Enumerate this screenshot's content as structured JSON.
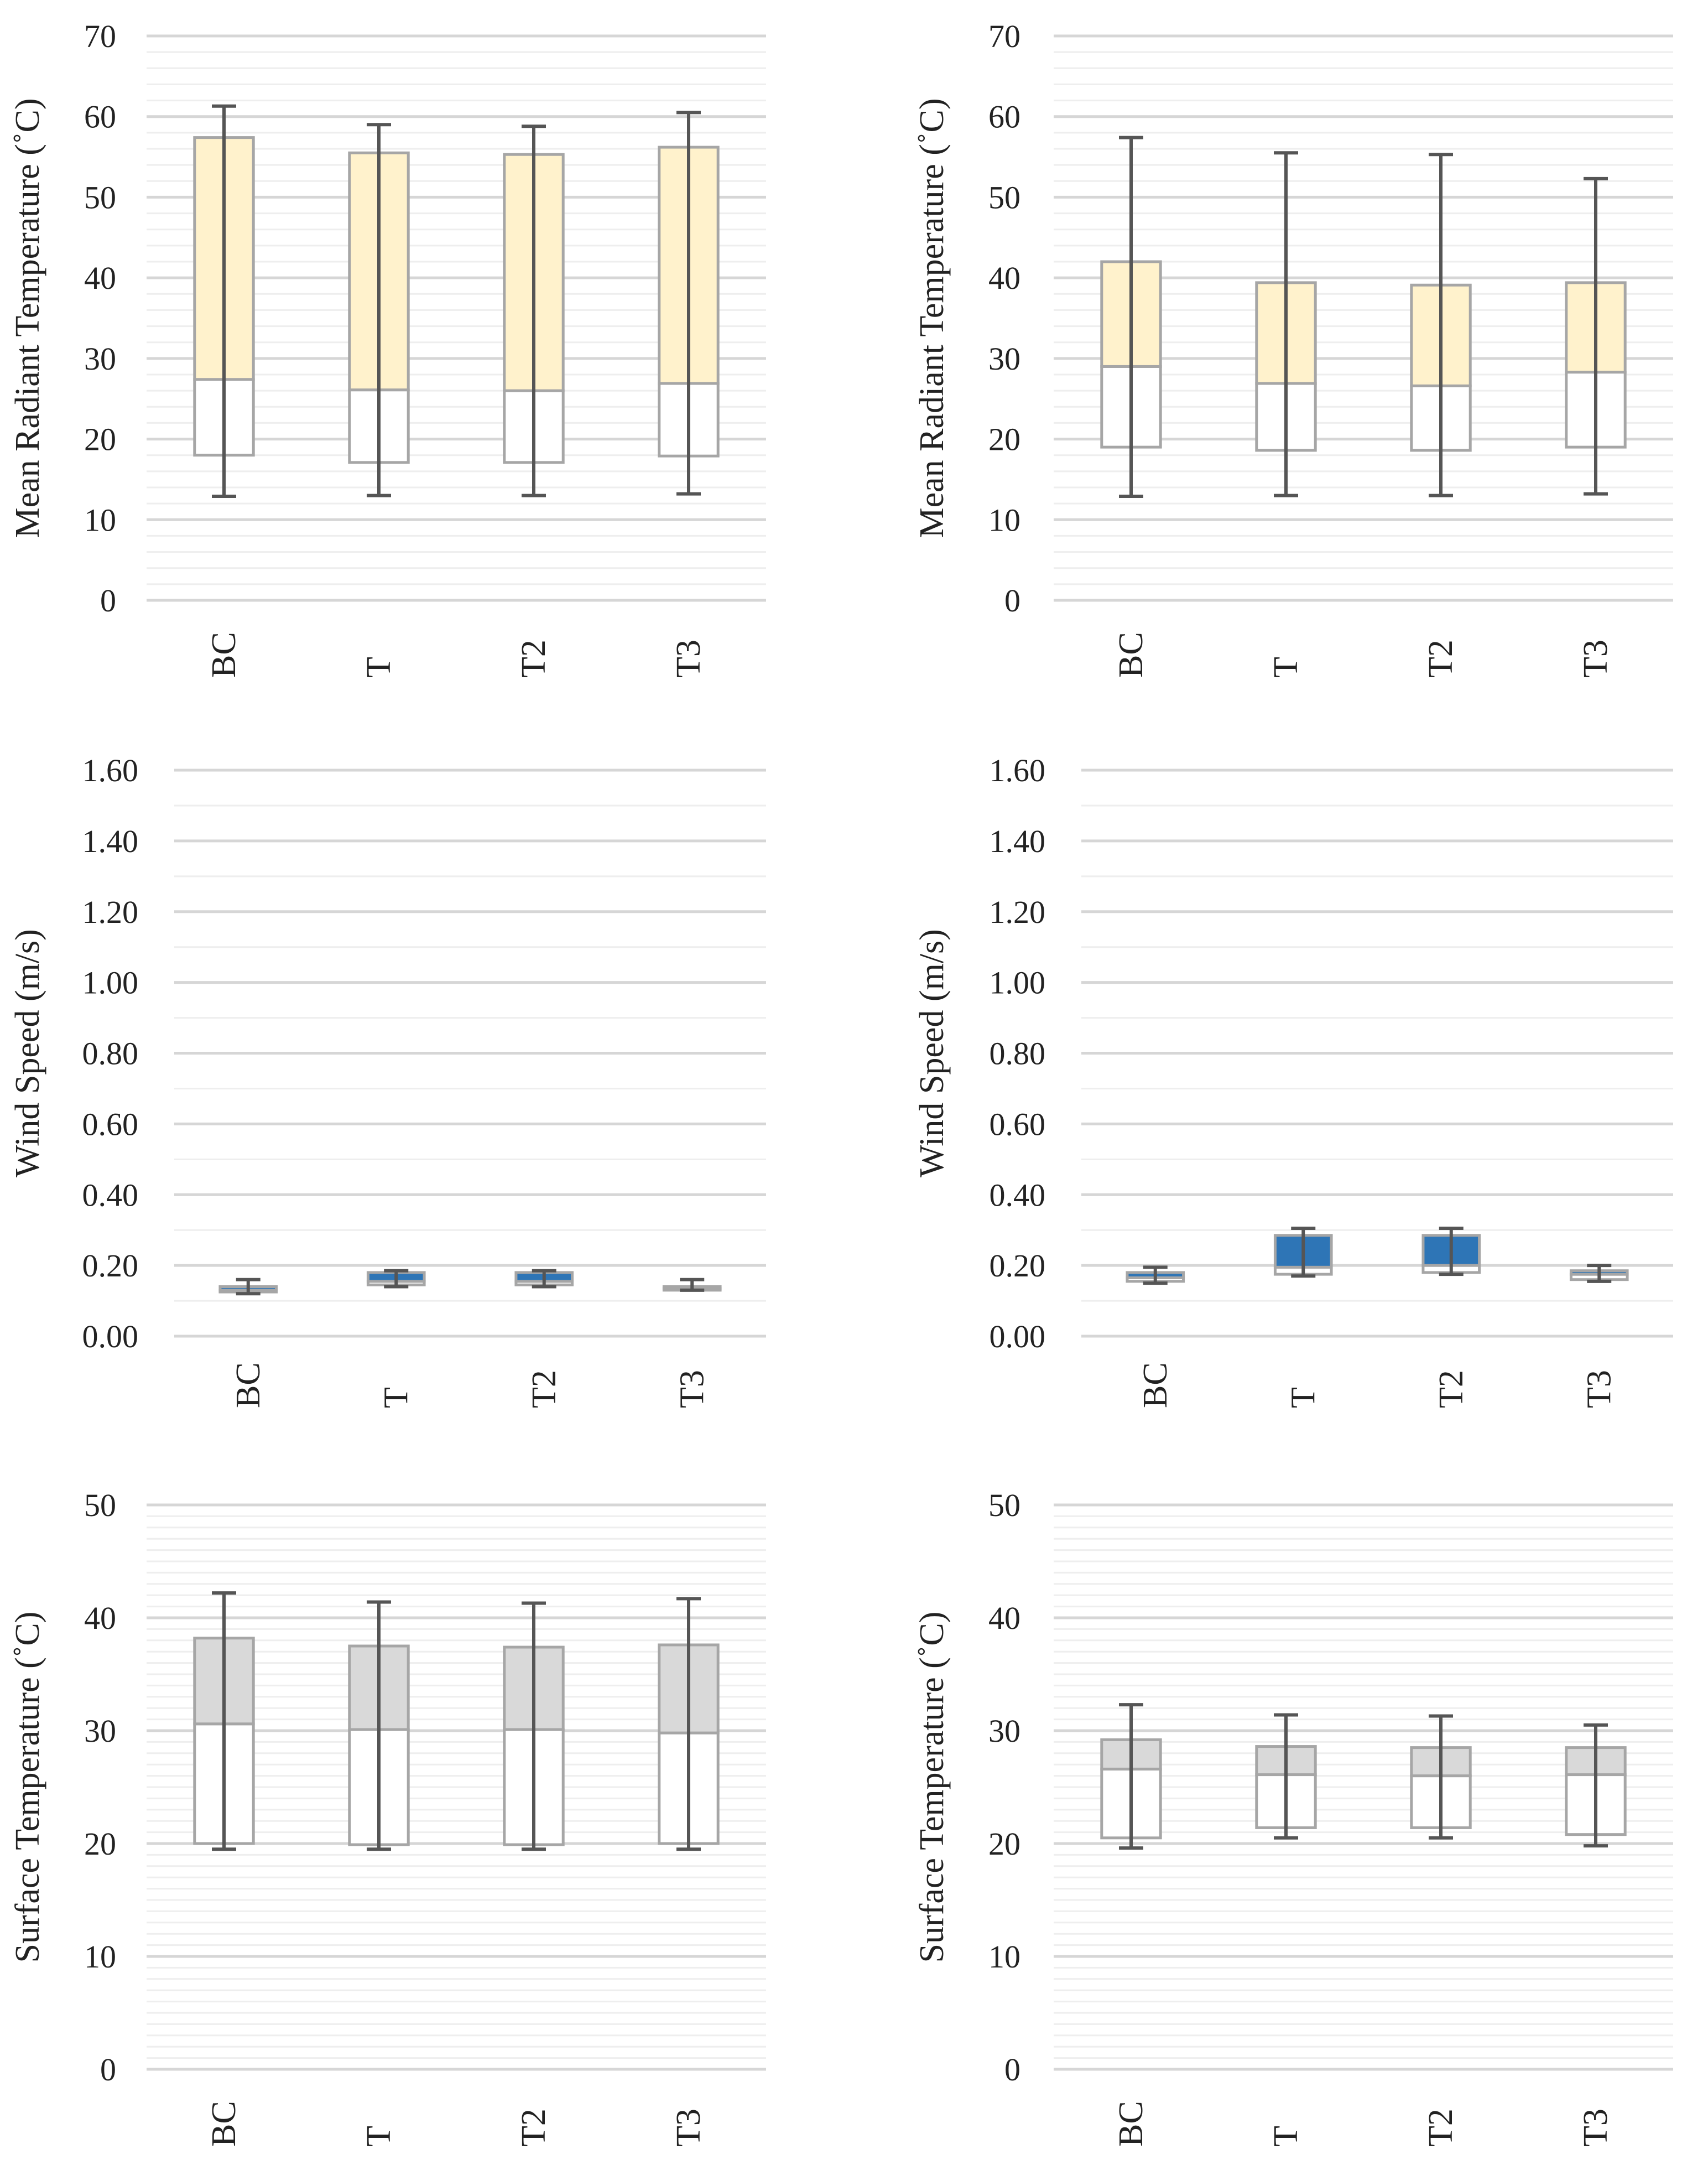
{
  "colors": {
    "major_grid": "#d6d6d6",
    "minor_grid": "#eeeeee",
    "box_edge": "#a6a6a6",
    "whisker": "#555555",
    "yellow": "#fff2cc",
    "blue": "#2e75b6",
    "grey": "#d9d9d9"
  },
  "chart_data": [
    {
      "id": "mrt-left",
      "type": "box",
      "ylabel": "Mean Radiant Temperature (˚C)",
      "ylim": [
        0,
        70
      ],
      "major_step": 10,
      "minor_step": 2,
      "tick_decimals": 0,
      "fill_color": "#fff2cc",
      "categories": [
        "BC",
        "T",
        "T2",
        "T3"
      ],
      "min": [
        12.9,
        13.0,
        13.0,
        13.2
      ],
      "q1": [
        18.0,
        17.1,
        17.1,
        17.9
      ],
      "median": [
        27.4,
        26.1,
        26.0,
        26.9
      ],
      "q3": [
        57.4,
        55.5,
        55.3,
        56.2
      ],
      "max": [
        61.3,
        59.0,
        58.8,
        60.5
      ]
    },
    {
      "id": "mrt-right",
      "type": "box",
      "ylabel": "Mean Radiant Temperature (˚C)",
      "ylim": [
        0,
        70
      ],
      "major_step": 10,
      "minor_step": 2,
      "tick_decimals": 0,
      "fill_color": "#fff2cc",
      "categories": [
        "BC",
        "T",
        "T2",
        "T3"
      ],
      "min": [
        12.9,
        13.0,
        13.0,
        13.2
      ],
      "q1": [
        19.0,
        18.6,
        18.6,
        19.0
      ],
      "median": [
        29.0,
        26.9,
        26.6,
        28.3
      ],
      "q3": [
        42.0,
        39.4,
        39.1,
        39.4
      ],
      "max": [
        57.4,
        55.5,
        55.3,
        52.3
      ]
    },
    {
      "id": "wind-left",
      "type": "box",
      "ylabel": "Wind Speed (m/s)",
      "ylim": [
        0,
        1.6
      ],
      "major_step": 0.2,
      "minor_step": 0.1,
      "tick_decimals": 2,
      "fill_color": "#2e75b6",
      "categories": [
        "BC",
        "T",
        "T2",
        "T3"
      ],
      "min": [
        0.12,
        0.14,
        0.14,
        0.13
      ],
      "q1": [
        0.125,
        0.145,
        0.145,
        0.13
      ],
      "median": [
        0.13,
        0.155,
        0.155,
        0.135
      ],
      "q3": [
        0.14,
        0.18,
        0.18,
        0.14
      ],
      "max": [
        0.16,
        0.185,
        0.185,
        0.16
      ]
    },
    {
      "id": "wind-right",
      "type": "box",
      "ylabel": "Wind Speed (m/s)",
      "ylim": [
        0,
        1.6
      ],
      "major_step": 0.2,
      "minor_step": 0.1,
      "tick_decimals": 2,
      "fill_color": "#2e75b6",
      "categories": [
        "BC",
        "T",
        "T2",
        "T3"
      ],
      "min": [
        0.15,
        0.17,
        0.175,
        0.155
      ],
      "q1": [
        0.155,
        0.175,
        0.18,
        0.16
      ],
      "median": [
        0.165,
        0.195,
        0.2,
        0.175
      ],
      "q3": [
        0.18,
        0.285,
        0.285,
        0.185
      ],
      "max": [
        0.195,
        0.305,
        0.305,
        0.2
      ]
    },
    {
      "id": "surf-left",
      "type": "box",
      "ylabel": "Surface Temperature (˚C)",
      "ylim": [
        0,
        50
      ],
      "major_step": 10,
      "minor_step": 1,
      "tick_decimals": 0,
      "fill_color": "#d9d9d9",
      "categories": [
        "BC",
        "T",
        "T2",
        "T3"
      ],
      "min": [
        19.5,
        19.5,
        19.5,
        19.5
      ],
      "q1": [
        20.0,
        19.9,
        19.9,
        20.0
      ],
      "median": [
        30.6,
        30.1,
        30.1,
        29.8
      ],
      "q3": [
        38.2,
        37.5,
        37.4,
        37.6
      ],
      "max": [
        42.2,
        41.4,
        41.3,
        41.7
      ]
    },
    {
      "id": "surf-right",
      "type": "box",
      "ylabel": "Surface Temperature (˚C)",
      "ylim": [
        0,
        50
      ],
      "major_step": 10,
      "minor_step": 1,
      "tick_decimals": 0,
      "fill_color": "#d9d9d9",
      "categories": [
        "BC",
        "T",
        "T2",
        "T3"
      ],
      "min": [
        19.6,
        20.5,
        20.5,
        19.8
      ],
      "q1": [
        20.5,
        21.4,
        21.4,
        20.8
      ],
      "median": [
        26.6,
        26.1,
        26.0,
        26.1
      ],
      "q3": [
        29.2,
        28.6,
        28.5,
        28.5
      ],
      "max": [
        32.3,
        31.4,
        31.3,
        30.5
      ]
    }
  ]
}
